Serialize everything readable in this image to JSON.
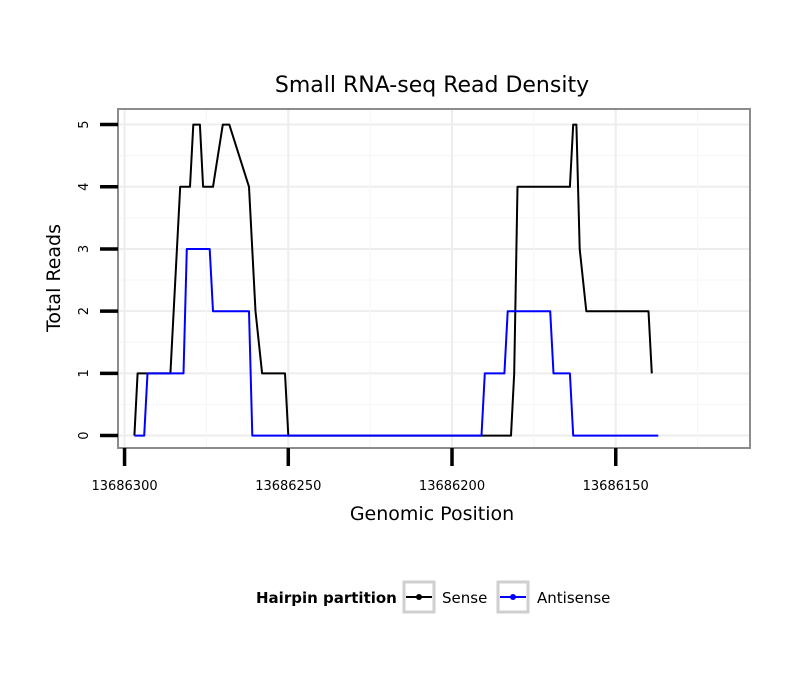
{
  "chart_data": {
    "type": "line",
    "title": "Small RNA-seq Read Density",
    "xlabel": "Genomic Position",
    "ylabel": "Total Reads",
    "x_reversed": true,
    "xlim": [
      13686302,
      13686109
    ],
    "ylim": [
      -0.2,
      5.25
    ],
    "x_ticks": [
      13686300,
      13686250,
      13686200,
      13686150
    ],
    "x_tick_labels": [
      "13686300",
      "13686250",
      "13686200",
      "13686150"
    ],
    "y_ticks": [
      0,
      1,
      2,
      3,
      4,
      5
    ],
    "y_tick_labels": [
      "0",
      "1",
      "2",
      "3",
      "4",
      "5"
    ],
    "grid": true,
    "legend": {
      "title": "Hairpin partition",
      "position": "bottom"
    },
    "series": [
      {
        "name": "Sense",
        "color": "#000000",
        "x": [
          13686297,
          13686296,
          13686286,
          13686283,
          13686280,
          13686279,
          13686277,
          13686276,
          13686273,
          13686270,
          13686268,
          13686262,
          13686260,
          13686258,
          13686251,
          13686250,
          13686182,
          13686181,
          13686180,
          13686164,
          13686163,
          13686162,
          13686161,
          13686159,
          13686140,
          13686139
        ],
        "values": [
          0,
          1,
          1,
          4,
          4,
          5,
          5,
          4,
          4,
          5,
          5,
          4,
          2,
          1,
          1,
          0,
          0,
          1,
          4,
          4,
          5,
          5,
          3,
          2,
          2,
          1
        ]
      },
      {
        "name": "Antisense",
        "color": "#0000ff",
        "x": [
          13686297,
          13686294,
          13686293,
          13686282,
          13686281,
          13686274,
          13686273,
          13686262,
          13686261,
          13686191,
          13686190,
          13686184,
          13686183,
          13686170,
          13686169,
          13686164,
          13686163,
          13686137
        ],
        "values": [
          0,
          0,
          1,
          1,
          3,
          3,
          2,
          2,
          0,
          0,
          1,
          1,
          2,
          2,
          1,
          1,
          0,
          0
        ]
      }
    ]
  }
}
